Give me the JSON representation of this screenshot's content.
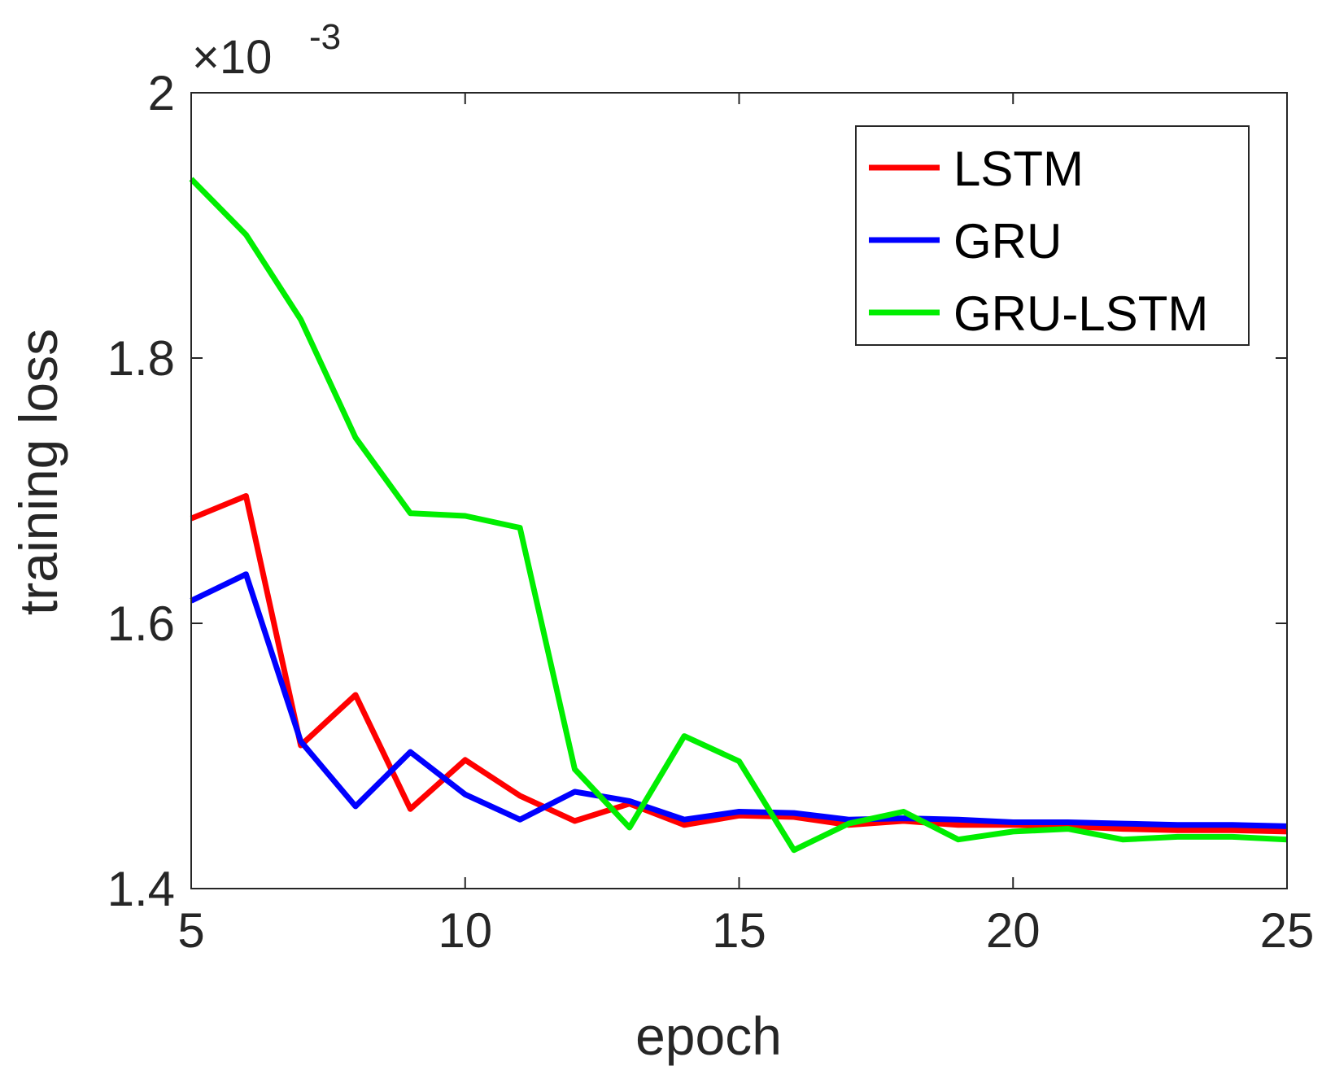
{
  "chart_data": {
    "type": "line",
    "xlabel": "epoch",
    "ylabel": "training loss",
    "y_exponent": {
      "times": "×10",
      "power": "-3"
    },
    "xlim": [
      5,
      25
    ],
    "ylim": [
      1.4,
      2.0
    ],
    "xticks": [
      5,
      10,
      15,
      20,
      25
    ],
    "xtick_labels": [
      "5",
      "10",
      "15",
      "20",
      "25"
    ],
    "yticks": [
      1.4,
      1.6,
      1.8,
      2.0
    ],
    "ytick_labels": [
      "1.4",
      "1.6",
      "1.8",
      "2"
    ],
    "grid": false,
    "legend_position": "top-right",
    "x": [
      5,
      6,
      7,
      8,
      9,
      10,
      11,
      12,
      13,
      14,
      15,
      16,
      17,
      18,
      19,
      20,
      21,
      22,
      23,
      24,
      25
    ],
    "series": [
      {
        "name": "LSTM",
        "color": "#ff0000",
        "values": [
          1.679,
          1.696,
          1.508,
          1.546,
          1.46,
          1.497,
          1.47,
          1.451,
          1.464,
          1.448,
          1.455,
          1.454,
          1.448,
          1.451,
          1.448,
          1.448,
          1.447,
          1.445,
          1.444,
          1.444,
          1.443
        ]
      },
      {
        "name": "GRU",
        "color": "#0000ff",
        "values": [
          1.617,
          1.637,
          1.511,
          1.462,
          1.503,
          1.471,
          1.452,
          1.473,
          1.466,
          1.452,
          1.458,
          1.457,
          1.452,
          1.453,
          1.452,
          1.45,
          1.45,
          1.449,
          1.448,
          1.448,
          1.447
        ]
      },
      {
        "name": "GRU-LSTM",
        "color": "#00ee00",
        "values": [
          1.935,
          1.893,
          1.829,
          1.74,
          1.683,
          1.681,
          1.672,
          1.49,
          1.446,
          1.515,
          1.496,
          1.429,
          1.449,
          1.458,
          1.437,
          1.443,
          1.445,
          1.437,
          1.439,
          1.439,
          1.437
        ]
      }
    ]
  }
}
